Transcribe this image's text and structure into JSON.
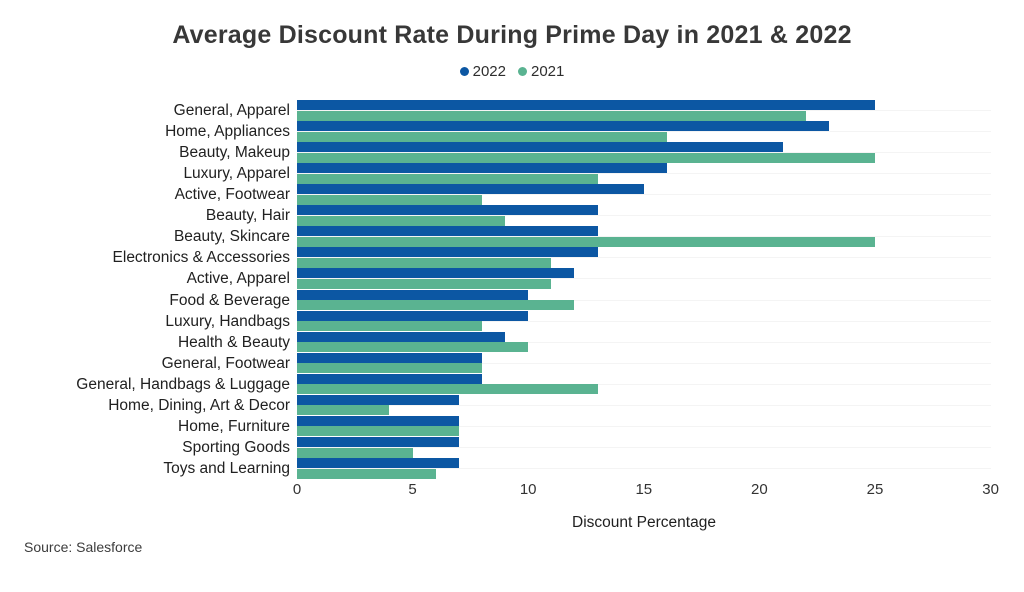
{
  "title": "Average Discount Rate During Prime Day in 2021 & 2022",
  "source": "Source: Salesforce",
  "colors": {
    "series_2022": "#0c57a3",
    "series_2021": "#5ab391",
    "title_text": "#383838",
    "label_text": "#212121"
  },
  "chart_data": {
    "type": "bar",
    "orientation": "horizontal",
    "title": "Average Discount Rate During Prime Day in 2021 & 2022",
    "xlabel": "Discount Percentage",
    "ylabel": "",
    "xlim": [
      0,
      30
    ],
    "xticks": [
      0,
      5,
      10,
      15,
      20,
      25,
      30
    ],
    "grid": false,
    "legend_position": "top-center",
    "categories": [
      "General, Apparel",
      "Home, Appliances",
      "Beauty, Makeup",
      "Luxury, Apparel",
      "Active, Footwear",
      "Beauty, Hair",
      "Beauty, Skincare",
      "Electronics & Accessories",
      "Active, Apparel",
      "Food & Beverage",
      "Luxury, Handbags",
      "Health & Beauty",
      "General, Footwear",
      "General, Handbags & Luggage",
      "Home, Dining, Art & Decor",
      "Home, Furniture",
      "Sporting Goods",
      "Toys and Learning"
    ],
    "series": [
      {
        "name": "2022",
        "color": "#0c57a3",
        "values": [
          25,
          23,
          21,
          16,
          15,
          13,
          13,
          13,
          12,
          10,
          10,
          9,
          8,
          8,
          7,
          7,
          7,
          7
        ]
      },
      {
        "name": "2021",
        "color": "#5ab391",
        "values": [
          22,
          16,
          25,
          13,
          8,
          9,
          25,
          11,
          11,
          12,
          8,
          10,
          8,
          13,
          4,
          7,
          5,
          6
        ]
      }
    ]
  }
}
